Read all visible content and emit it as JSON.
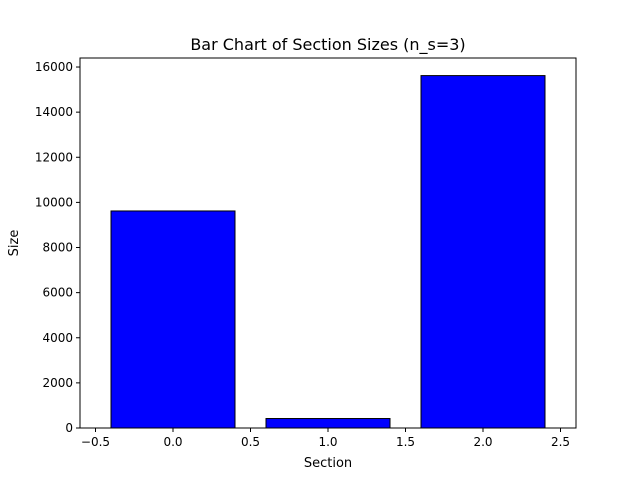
{
  "chart_data": {
    "type": "bar",
    "title": "Bar Chart of Section Sizes (n_s=3)",
    "xlabel": "Section",
    "ylabel": "Size",
    "x": [
      0,
      1,
      2
    ],
    "values": [
      9620,
      420,
      15620
    ],
    "bar_width": 0.8,
    "xlim": [
      -0.6,
      2.6
    ],
    "ylim": [
      0,
      16400
    ],
    "x_ticks": [
      -0.5,
      0.0,
      0.5,
      1.0,
      1.5,
      2.0,
      2.5
    ],
    "x_tick_labels": [
      "−0.5",
      "0.0",
      "0.5",
      "1.0",
      "1.5",
      "2.0",
      "2.5"
    ],
    "y_ticks": [
      0,
      2000,
      4000,
      6000,
      8000,
      10000,
      12000,
      14000,
      16000
    ],
    "y_tick_labels": [
      "0",
      "2000",
      "4000",
      "6000",
      "8000",
      "10000",
      "12000",
      "14000",
      "16000"
    ],
    "grid": false,
    "bar_color": "#0000ff",
    "edge_color": "#000000"
  }
}
